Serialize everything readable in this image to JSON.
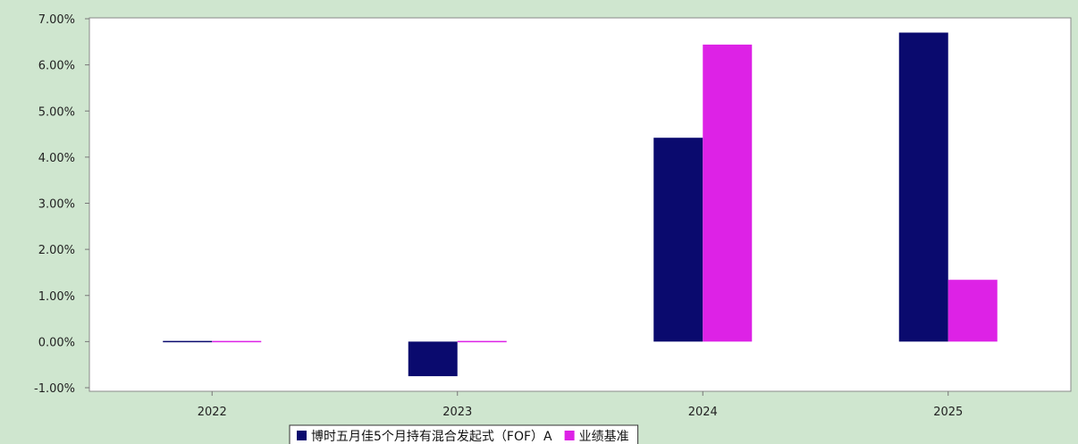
{
  "chart_data": {
    "type": "bar",
    "categories": [
      "2022",
      "2023",
      "2024",
      "2025"
    ],
    "series": [
      {
        "name": "博时五月佳5个月持有混合发起式（FOF）A",
        "color": "#0a0a6e",
        "values": [
          0.02,
          -0.75,
          4.42,
          6.7
        ]
      },
      {
        "name": "业绩基准",
        "color": "#dd22e6",
        "values": [
          -0.02,
          -0.02,
          6.44,
          1.34
        ]
      }
    ],
    "y_ticks": [
      "7.00%",
      "6.00%",
      "5.00%",
      "4.00%",
      "3.00%",
      "2.00%",
      "1.00%",
      "0.00%",
      "-1.00%"
    ],
    "ylim": [
      -1,
      7
    ],
    "grid": false,
    "legend_position": "bottom-center",
    "plot_background": "#ffffff",
    "page_background": "#cfe6cf"
  }
}
